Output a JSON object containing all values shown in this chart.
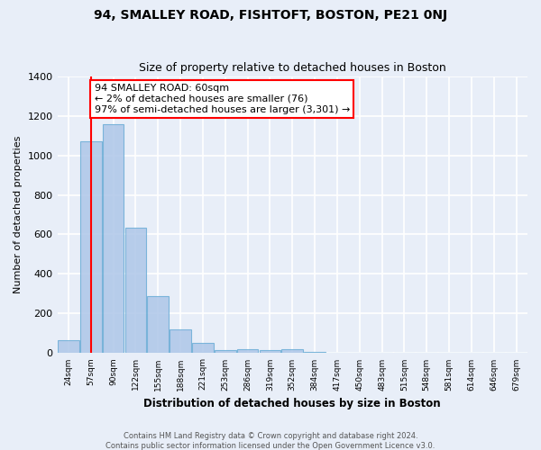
{
  "title": "94, SMALLEY ROAD, FISHTOFT, BOSTON, PE21 0NJ",
  "subtitle": "Size of property relative to detached houses in Boston",
  "xlabel": "Distribution of detached houses by size in Boston",
  "ylabel": "Number of detached properties",
  "bar_labels": [
    "24sqm",
    "57sqm",
    "90sqm",
    "122sqm",
    "155sqm",
    "188sqm",
    "221sqm",
    "253sqm",
    "286sqm",
    "319sqm",
    "352sqm",
    "384sqm",
    "417sqm",
    "450sqm",
    "483sqm",
    "515sqm",
    "548sqm",
    "581sqm",
    "614sqm",
    "646sqm",
    "679sqm"
  ],
  "bar_heights": [
    65,
    1070,
    1155,
    635,
    290,
    120,
    50,
    15,
    20,
    15,
    20,
    5,
    0,
    0,
    0,
    0,
    0,
    0,
    0,
    0,
    0
  ],
  "bar_color": "#aec6e8",
  "bar_edge_color": "#6baed6",
  "ylim": [
    0,
    1400
  ],
  "yticks": [
    0,
    200,
    400,
    600,
    800,
    1000,
    1200,
    1400
  ],
  "annotation_text": "94 SMALLEY ROAD: 60sqm\n← 2% of detached houses are smaller (76)\n97% of semi-detached houses are larger (3,301) →",
  "footer_line1": "Contains HM Land Registry data © Crown copyright and database right 2024.",
  "footer_line2": "Contains public sector information licensed under the Open Government Licence v3.0.",
  "background_color": "#e8eef8",
  "grid_color": "#ffffff",
  "bin_edges": [
    24,
    57,
    90,
    122,
    155,
    188,
    221,
    253,
    286,
    319,
    352,
    384,
    417,
    450,
    483,
    515,
    548,
    581,
    614,
    646,
    679
  ],
  "prop_size": 60
}
